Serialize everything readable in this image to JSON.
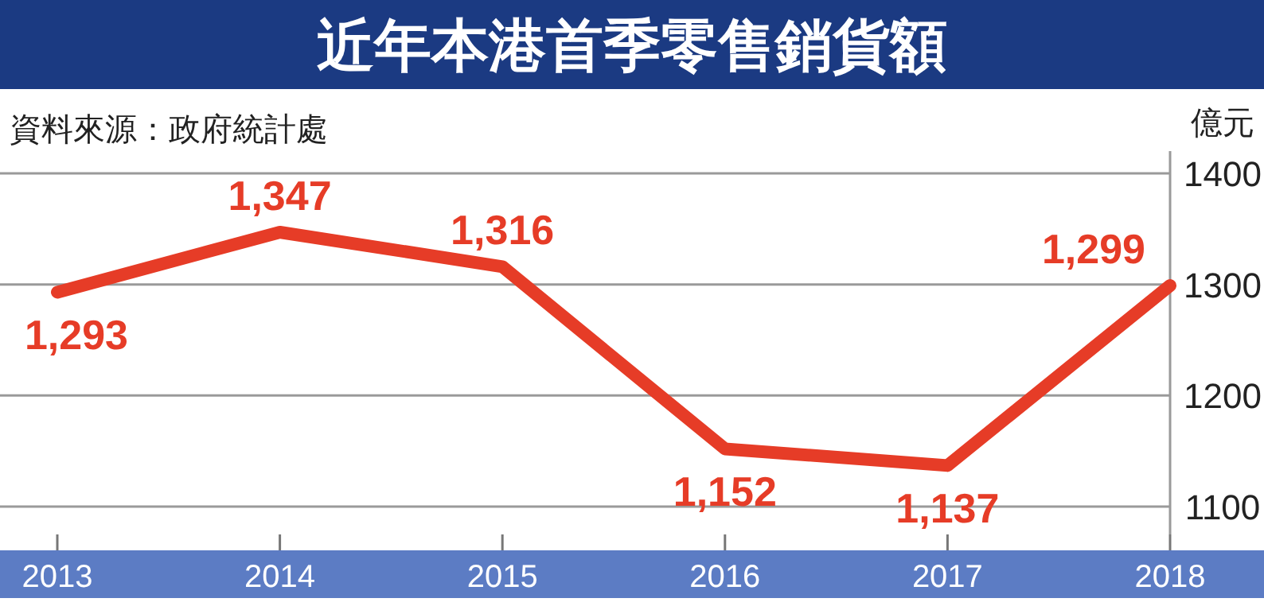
{
  "chart_data": {
    "type": "line",
    "title": "近年本港首季零售銷貨額",
    "annotations": [
      "資料來源：政府統計處"
    ],
    "ylabel": "億元",
    "categories": [
      "2013",
      "2014",
      "2015",
      "2016",
      "2017",
      "2018"
    ],
    "series": [
      {
        "color": "#e63c27",
        "values": [
          1293,
          1347,
          1316,
          1152,
          1137,
          1299
        ],
        "value_labels": [
          "1,293",
          "1,347",
          "1,316",
          "1,152",
          "1,137",
          "1,299"
        ]
      }
    ],
    "ylim": [
      1075,
      1420
    ],
    "yticks": [
      1100,
      1200,
      1300,
      1400
    ],
    "grid": "y",
    "marker": "none",
    "line_style": "solid"
  }
}
